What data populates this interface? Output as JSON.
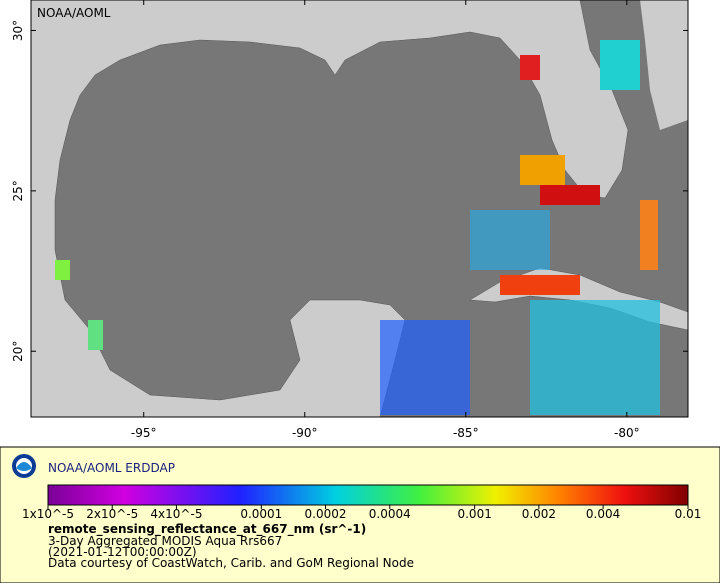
{
  "map": {
    "watermark": "NOAA/AOML",
    "xlim": [
      -98.5,
      -78.1
    ],
    "ylim": [
      17.95,
      30.95
    ],
    "xticks": [
      {
        "value": -95,
        "label": "-95°"
      },
      {
        "value": -90,
        "label": "-90°"
      },
      {
        "value": -85,
        "label": "-85°"
      },
      {
        "value": -80,
        "label": "-80°"
      }
    ],
    "yticks": [
      {
        "value": 20,
        "label": "20°"
      },
      {
        "value": 25,
        "label": "25°"
      },
      {
        "value": 30,
        "label": "30°"
      }
    ]
  },
  "legend": {
    "title": "NOAA/AOML ERDDAP",
    "colorbar": {
      "scale": "log",
      "lim": [
        1e-05,
        0.01
      ],
      "ticks": [
        {
          "value": 1e-05,
          "label": "1x10^-5"
        },
        {
          "value": 2e-05,
          "label": "2x10^-5"
        },
        {
          "value": 4e-05,
          "label": "4x10^-5"
        },
        0.0001,
        0.0002,
        0.0004,
        0.001,
        0.002,
        0.004,
        0.01
      ]
    },
    "variable": "remote_sensing_reflectance_at_667_nm (sr^-1)",
    "description": "3-Day Aggregated MODIS Aqua Rrs667",
    "time": "(2021-01-12T00:00:00Z)",
    "credit": "Data courtesy of CoastWatch, Carib. and GoM Regional Node"
  }
}
